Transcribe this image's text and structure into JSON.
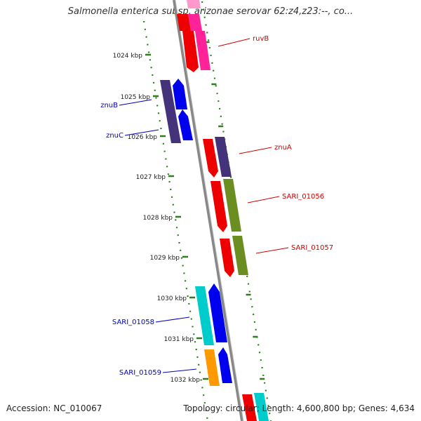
{
  "title": "Salmonella enterica subsp. arizonae serovar 62:z4,z23:--, co...",
  "footer": {
    "accession": "Accession: NC_010067",
    "summary": "Topology: circular; Length: 4,600,800 bp; Genes: 4,634"
  },
  "ticks": [
    {
      "label": "1024 kbp",
      "pos": 1024
    },
    {
      "label": "1025 kbp",
      "pos": 1025
    },
    {
      "label": "1026 kbp",
      "pos": 1026
    },
    {
      "label": "1027 kbp",
      "pos": 1027
    },
    {
      "label": "1028 kbp",
      "pos": 1028
    },
    {
      "label": "1029 kbp",
      "pos": 1029
    },
    {
      "label": "1030 kbp",
      "pos": 1030
    },
    {
      "label": "1031 kbp",
      "pos": 1031
    },
    {
      "label": "1032 kbp",
      "pos": 1032
    }
  ],
  "gene_labels": [
    {
      "name": "ruvB",
      "side": "right",
      "color": "#cc0000"
    },
    {
      "name": "znuB",
      "side": "left",
      "color": "#0000bb"
    },
    {
      "name": "znuC",
      "side": "left",
      "color": "#0000bb"
    },
    {
      "name": "znuA",
      "side": "right",
      "color": "#cc0000"
    },
    {
      "name": "SARI_01056",
      "side": "right",
      "color": "#cc0000"
    },
    {
      "name": "SARI_01057",
      "side": "right",
      "color": "#cc0000"
    },
    {
      "name": "SARI_01058",
      "side": "left",
      "color": "#0000bb"
    },
    {
      "name": "SARI_01059",
      "side": "left",
      "color": "#0000bb"
    }
  ],
  "colors": {
    "forward_strand": "#ee0000",
    "reverse_strand": "#0000ee",
    "backbone": "#888888",
    "tick": "#2e7d1e",
    "cog_pink": "#ff2299",
    "cog_purple": "#44337a",
    "cog_olive": "#6b8e23",
    "cog_cyan": "#00cccc",
    "cog_orange": "#ff9900"
  }
}
